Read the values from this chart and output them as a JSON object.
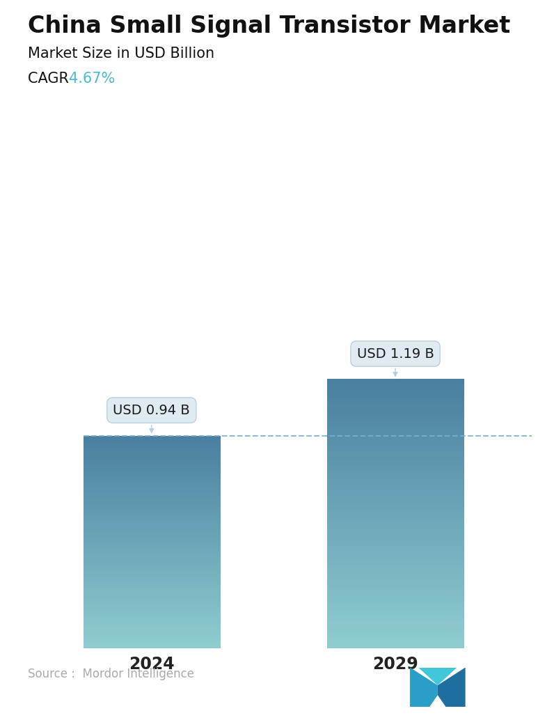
{
  "title": "China Small Signal Transistor Market",
  "subtitle": "Market Size in USD Billion",
  "cagr_label": "CAGR ",
  "cagr_value": "4.67%",
  "cagr_color": "#4ab8d8",
  "categories": [
    "2024",
    "2029"
  ],
  "values": [
    0.94,
    1.19
  ],
  "value_labels": [
    "USD 0.94 B",
    "USD 1.19 B"
  ],
  "bar_top_color": "#4a7fa0",
  "bar_bottom_color": "#90cdd0",
  "dashed_line_color": "#7ab0cc",
  "source_text": "Source :  Mordor Intelligence",
  "source_color": "#aaaaaa",
  "background_color": "#ffffff",
  "title_fontsize": 24,
  "subtitle_fontsize": 15,
  "cagr_fontsize": 15,
  "tick_fontsize": 17,
  "label_fontsize": 14,
  "source_fontsize": 12
}
